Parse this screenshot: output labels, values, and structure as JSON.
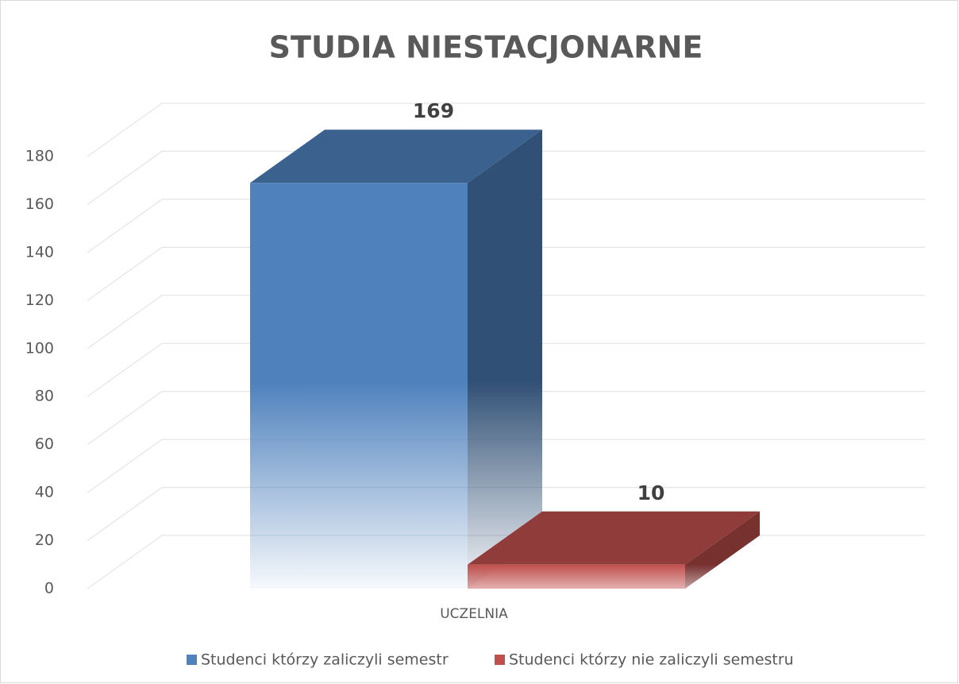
{
  "chart_data": {
    "type": "bar3d",
    "title": "STUDIA NIESTACJONARNE",
    "categories": [
      "UCZELNIA"
    ],
    "series": [
      {
        "name": "Studenci którzy zaliczyli semestr",
        "color": "#4f81bd",
        "values": [
          169
        ]
      },
      {
        "name": "Studenci którzy nie zaliczyli semestru",
        "color": "#c0504d",
        "values": [
          10
        ]
      }
    ],
    "ylim": [
      0,
      180
    ],
    "yticks": [
      0,
      20,
      40,
      60,
      80,
      100,
      120,
      140,
      160,
      180
    ],
    "grid": true,
    "legend": "bottom"
  }
}
